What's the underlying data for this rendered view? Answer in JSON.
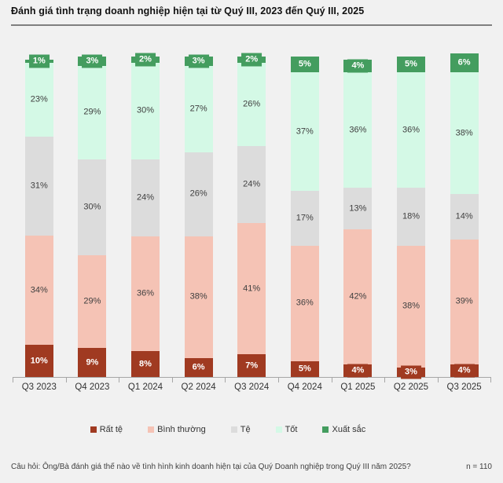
{
  "title": "Đánh giá tình trạng doanh nghiệp hiện tại từ Quý III, 2023 đến Quý III, 2025",
  "footer": {
    "question": "Câu hỏi: Ông/Bà đánh giá thế nào về tình hình kinh doanh hiện tại của Quý Doanh nghiệp trong Quý III năm 2025?",
    "sample_size": "n = 110"
  },
  "colors": {
    "background": "#f1f1f1",
    "axis": "#a6a6a6",
    "title_rule": "#7f7f7f",
    "dark_label_text": "#404040",
    "light_label_text": "#ffffff"
  },
  "chart_data": {
    "type": "bar",
    "stacked": true,
    "unit": "%",
    "title": "Đánh giá tình trạng doanh nghiệp hiện tại từ Quý III, 2023 đến Quý III, 2025",
    "xlabel": "",
    "ylabel": "",
    "ylim": [
      0,
      100
    ],
    "grid": false,
    "legend_position": "bottom",
    "categories": [
      "Q3 2023",
      "Q4 2023",
      "Q1 2024",
      "Q2 2024",
      "Q3 2024",
      "Q4 2024",
      "Q1 2025",
      "Q2 2025",
      "Q3 2025"
    ],
    "series": [
      {
        "name": "Rất tệ",
        "color": "#A03A21",
        "label_color": "#ffffff",
        "bold_label": true,
        "values": [
          10,
          9,
          8,
          6,
          7,
          5,
          4,
          3,
          4
        ]
      },
      {
        "name": "Bình thường",
        "color": "#F5C3B5",
        "label_color": "#404040",
        "bold_label": false,
        "values": [
          34,
          29,
          36,
          38,
          41,
          36,
          42,
          38,
          39
        ]
      },
      {
        "name": "Tệ",
        "color": "#DCDCDC",
        "label_color": "#404040",
        "bold_label": false,
        "values": [
          31,
          30,
          24,
          26,
          24,
          17,
          13,
          18,
          14
        ]
      },
      {
        "name": "Tốt",
        "color": "#D4F9E6",
        "label_color": "#404040",
        "bold_label": false,
        "values": [
          23,
          29,
          30,
          27,
          26,
          37,
          36,
          36,
          38
        ]
      },
      {
        "name": "Xuất sắc",
        "color": "#449D5F",
        "label_color": "#ffffff",
        "bold_label": true,
        "values": [
          1,
          3,
          2,
          3,
          2,
          5,
          4,
          5,
          6
        ]
      }
    ]
  }
}
